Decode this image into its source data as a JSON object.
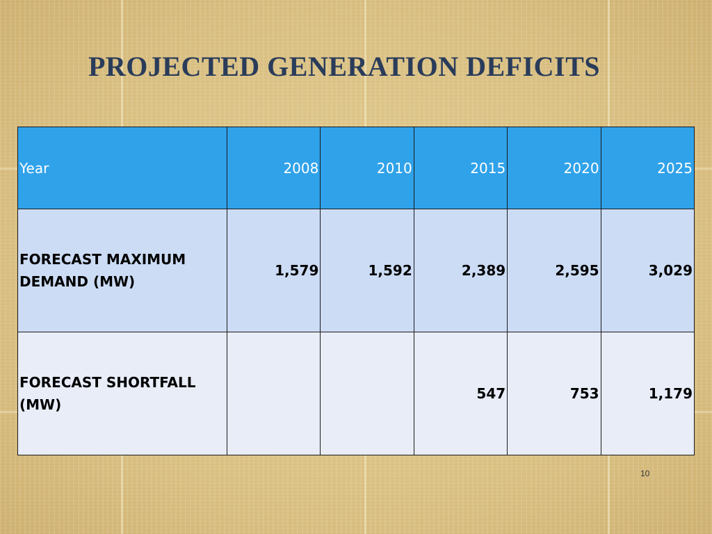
{
  "slide": {
    "title": "PROJECTED GENERATION DEFICITS",
    "page_number": "10"
  },
  "table": {
    "header": {
      "label": "Year",
      "years": [
        "2008",
        "2010",
        "2015",
        "2020",
        "2025"
      ]
    },
    "rows": [
      {
        "label": "FORECAST MAXIMUM DEMAND (MW)",
        "values": [
          "1,579",
          "1,592",
          "2,389",
          "2,595",
          "3,029"
        ]
      },
      {
        "label": "FORECAST SHORTFALL (MW)",
        "values": [
          "",
          "",
          "547",
          "753",
          "1,179"
        ]
      }
    ]
  },
  "colors": {
    "header_bg": "#30a2ea",
    "row1_bg": "#ccdcf5",
    "row2_bg": "#e8edf8",
    "title": "#2a3c5a"
  }
}
